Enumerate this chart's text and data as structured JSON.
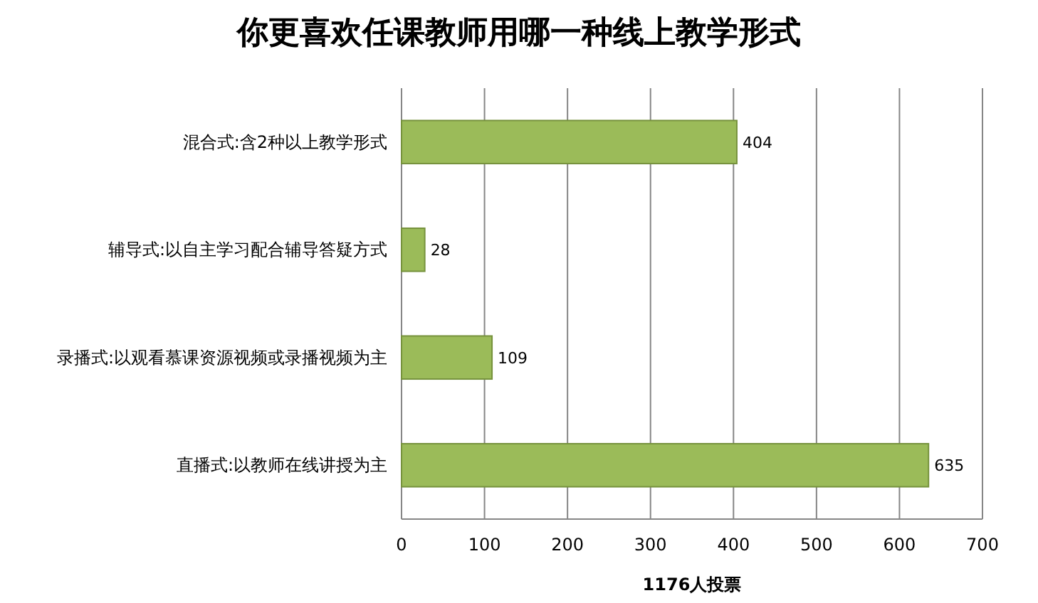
{
  "chart_data": {
    "type": "bar",
    "orientation": "horizontal",
    "title": "你更喜欢任课教师用哪一种线上教学形式",
    "xlabel": "1176人投票",
    "categories": [
      "混合式:含2种以上教学形式",
      "辅导式:以自主学习配合辅导答疑方式",
      "录播式:以观看慕课资源视频或录播视频为主",
      "直播式:以教师在线讲授为主"
    ],
    "values": [
      404,
      28,
      109,
      635
    ],
    "color": "#9bbb59",
    "xlim": [
      0,
      700
    ],
    "xticks": [
      0,
      100,
      200,
      300,
      400,
      500,
      600,
      700
    ],
    "grid": "x",
    "data_labels": true
  }
}
